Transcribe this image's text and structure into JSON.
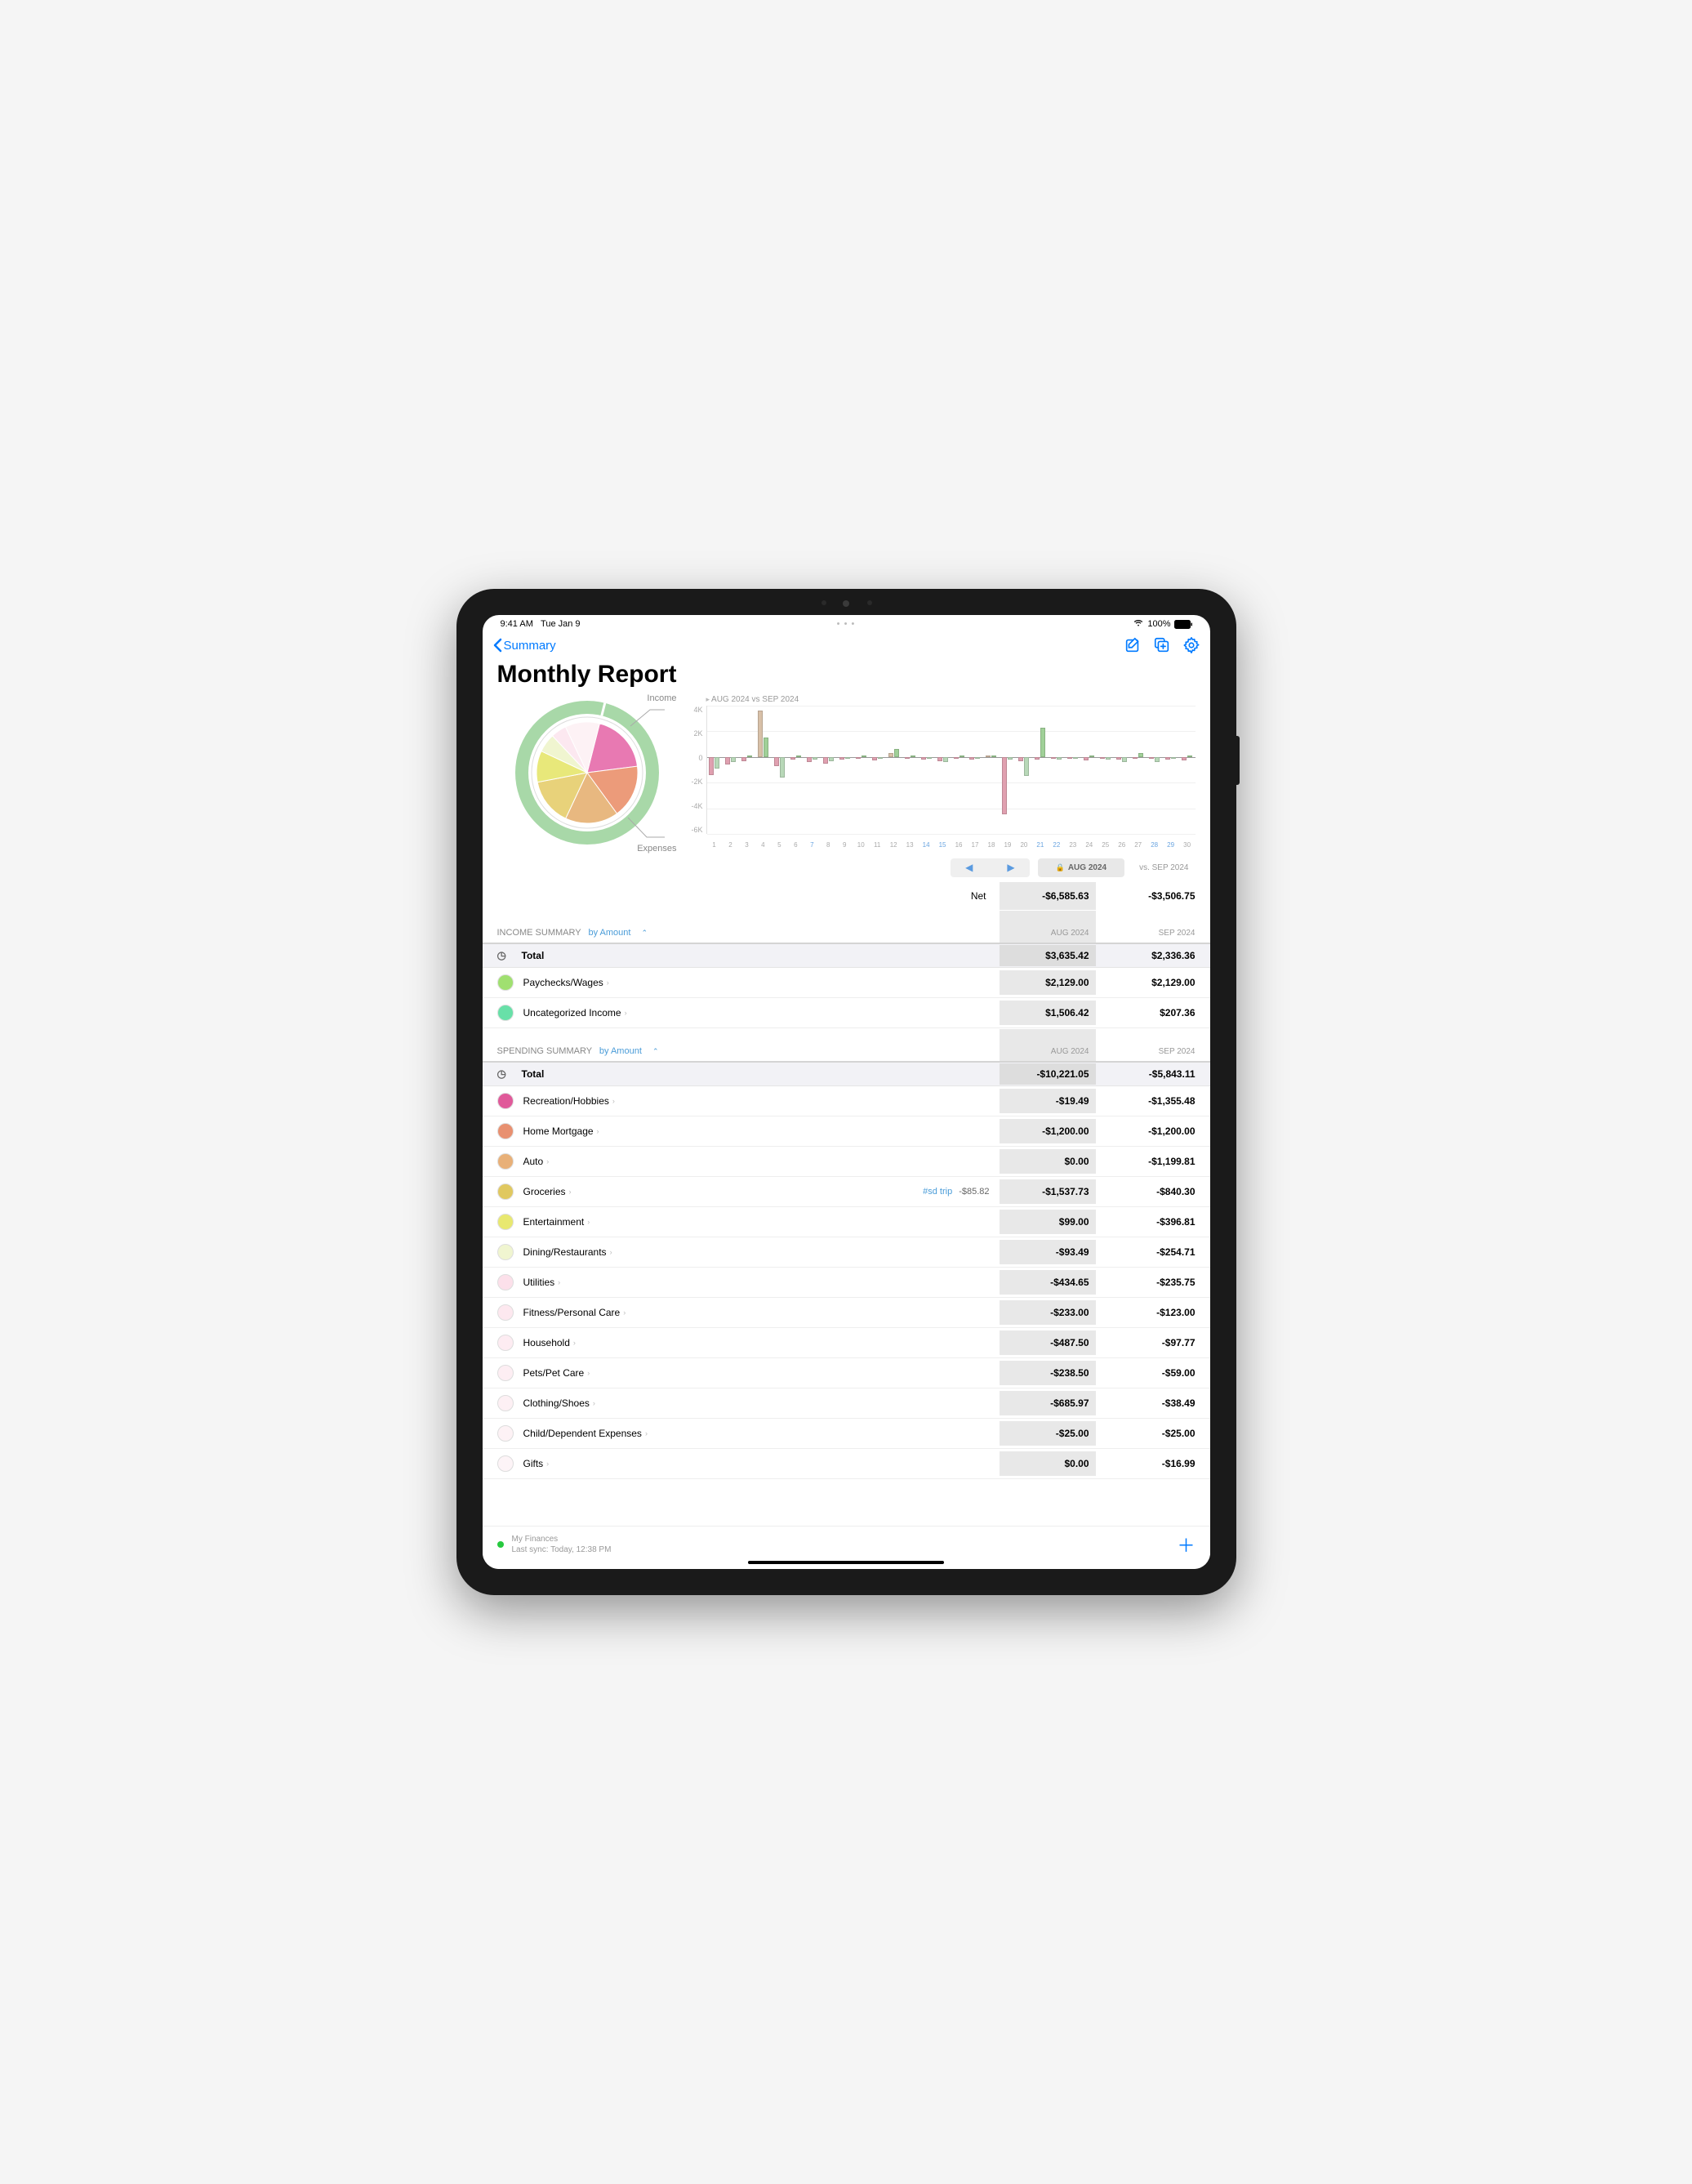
{
  "status_bar": {
    "time": "9:41 AM",
    "date": "Tue Jan 9",
    "wifi": true,
    "battery_pct": "100%"
  },
  "nav": {
    "back_label": "Summary"
  },
  "page": {
    "title": "Monthly Report"
  },
  "donut": {
    "label_top": "Income",
    "label_bottom": "Expenses",
    "outer_ring_color": "#a8d8a8",
    "outer_ring_width": 16,
    "inner_slices": [
      {
        "name": "recreation",
        "value": 19,
        "color": "#e879b2"
      },
      {
        "name": "home_mortgage",
        "value": 17,
        "color": "#ec9b7a"
      },
      {
        "name": "auto",
        "value": 17,
        "color": "#e8b880"
      },
      {
        "name": "groceries",
        "value": 15,
        "color": "#e8d27a"
      },
      {
        "name": "entertainment",
        "value": 10,
        "color": "#e8e87a"
      },
      {
        "name": "dining",
        "value": 6,
        "color": "#f0f5d0"
      },
      {
        "name": "utilities",
        "value": 5,
        "color": "#fce8f0"
      },
      {
        "name": "other",
        "value": 11,
        "color": "#fdf2f5"
      }
    ],
    "inner_border_color": "#ccc",
    "inner_bg": "#fff"
  },
  "bar_chart": {
    "title": "AUG 2024 vs SEP 2024",
    "ylim": [
      -6000,
      4000
    ],
    "ytick_step": 2000,
    "yticks_labels": [
      "4K",
      "2K",
      "0",
      "-2K",
      "-4K",
      "-6K"
    ],
    "zero_level": 4000,
    "grid_color": "#f0f0f0",
    "color_a": "#e0a0b0",
    "color_b": "#b8d8b8",
    "color_a_pos": "#d8c0a8",
    "color_b_pos": "#a0d098",
    "highlighted_days": [
      7,
      14,
      15,
      21,
      22,
      28,
      29
    ],
    "days": [
      {
        "d": 1,
        "a": -1400,
        "b": -900
      },
      {
        "d": 2,
        "a": -600,
        "b": -400
      },
      {
        "d": 3,
        "a": -300,
        "b": 0
      },
      {
        "d": 4,
        "a": 3600,
        "b": 1500
      },
      {
        "d": 5,
        "a": -700,
        "b": -1600
      },
      {
        "d": 6,
        "a": -200,
        "b": 0
      },
      {
        "d": 7,
        "a": -400,
        "b": -200
      },
      {
        "d": 8,
        "a": -500,
        "b": -300
      },
      {
        "d": 9,
        "a": -200,
        "b": -100
      },
      {
        "d": 10,
        "a": -150,
        "b": 0
      },
      {
        "d": 11,
        "a": -250,
        "b": -150
      },
      {
        "d": 12,
        "a": 300,
        "b": 600
      },
      {
        "d": 13,
        "a": -100,
        "b": 0
      },
      {
        "d": 14,
        "a": -200,
        "b": -80
      },
      {
        "d": 15,
        "a": -300,
        "b": -400
      },
      {
        "d": 16,
        "a": -150,
        "b": 0
      },
      {
        "d": 17,
        "a": -200,
        "b": -100
      },
      {
        "d": 18,
        "a": 0,
        "b": 0
      },
      {
        "d": 19,
        "a": -4500,
        "b": -200
      },
      {
        "d": 20,
        "a": -300,
        "b": -1500
      },
      {
        "d": 21,
        "a": -200,
        "b": 2300
      },
      {
        "d": 22,
        "a": -100,
        "b": -200
      },
      {
        "d": 23,
        "a": -150,
        "b": -100
      },
      {
        "d": 24,
        "a": -250,
        "b": 0
      },
      {
        "d": 25,
        "a": -150,
        "b": -200
      },
      {
        "d": 26,
        "a": -200,
        "b": -400
      },
      {
        "d": 27,
        "a": -100,
        "b": 300
      },
      {
        "d": 28,
        "a": -150,
        "b": -400
      },
      {
        "d": 29,
        "a": -200,
        "b": -100
      },
      {
        "d": 30,
        "a": -250,
        "b": 0
      }
    ]
  },
  "period": {
    "current": "AUG 2024",
    "compare_prefix": "vs.",
    "compare": "SEP 2024"
  },
  "net": {
    "label": "Net",
    "a": "-$6,585.63",
    "b": "-$3,506.75"
  },
  "income": {
    "header": "INCOME SUMMARY",
    "sort": "by Amount",
    "col_a": "AUG 2024",
    "col_b": "SEP 2024",
    "total_label": "Total",
    "total_a": "$3,635.42",
    "total_b": "$2,336.36",
    "rows": [
      {
        "label": "Paychecks/Wages",
        "color": "#a0e070",
        "a": "$2,129.00",
        "b": "$2,129.00"
      },
      {
        "label": "Uncategorized Income",
        "color": "#68e0a8",
        "a": "$1,506.42",
        "b": "$207.36"
      }
    ]
  },
  "spending": {
    "header": "SPENDING SUMMARY",
    "sort": "by Amount",
    "col_a": "AUG 2024",
    "col_b": "SEP 2024",
    "total_label": "Total",
    "total_a": "-$10,221.05",
    "total_b": "-$5,843.11",
    "rows": [
      {
        "label": "Recreation/Hobbies",
        "color": "#e05a9a",
        "a": "-$19.49",
        "b": "-$1,355.48"
      },
      {
        "label": "Home Mortgage",
        "color": "#e89070",
        "a": "-$1,200.00",
        "b": "-$1,200.00"
      },
      {
        "label": "Auto",
        "color": "#e8b078",
        "a": "$0.00",
        "b": "-$1,199.81"
      },
      {
        "label": "Groceries",
        "color": "#e0c860",
        "a": "-$1,537.73",
        "b": "-$840.30",
        "tag": "#sd trip",
        "tag_val": "-$85.82"
      },
      {
        "label": "Entertainment",
        "color": "#e8e870",
        "a": "$99.00",
        "b": "-$396.81"
      },
      {
        "label": "Dining/Restaurants",
        "color": "#f0f5d0",
        "a": "-$93.49",
        "b": "-$254.71"
      },
      {
        "label": "Utilities",
        "color": "#fce0ea",
        "a": "-$434.65",
        "b": "-$235.75"
      },
      {
        "label": "Fitness/Personal Care",
        "color": "#fde8ef",
        "a": "-$233.00",
        "b": "-$123.00"
      },
      {
        "label": "Household",
        "color": "#fdecf2",
        "a": "-$487.50",
        "b": "-$97.77"
      },
      {
        "label": "Pets/Pet Care",
        "color": "#fdeef3",
        "a": "-$238.50",
        "b": "-$59.00"
      },
      {
        "label": "Clothing/Shoes",
        "color": "#fdf0f4",
        "a": "-$685.97",
        "b": "-$38.49"
      },
      {
        "label": "Child/Dependent Expenses",
        "color": "#fdf2f5",
        "a": "-$25.00",
        "b": "-$25.00"
      },
      {
        "label": "Gifts",
        "color": "#fdf4f7",
        "a": "$0.00",
        "b": "-$16.99"
      }
    ]
  },
  "footer": {
    "account": "My Finances",
    "sync": "Last sync: Today, 12:38 PM"
  }
}
